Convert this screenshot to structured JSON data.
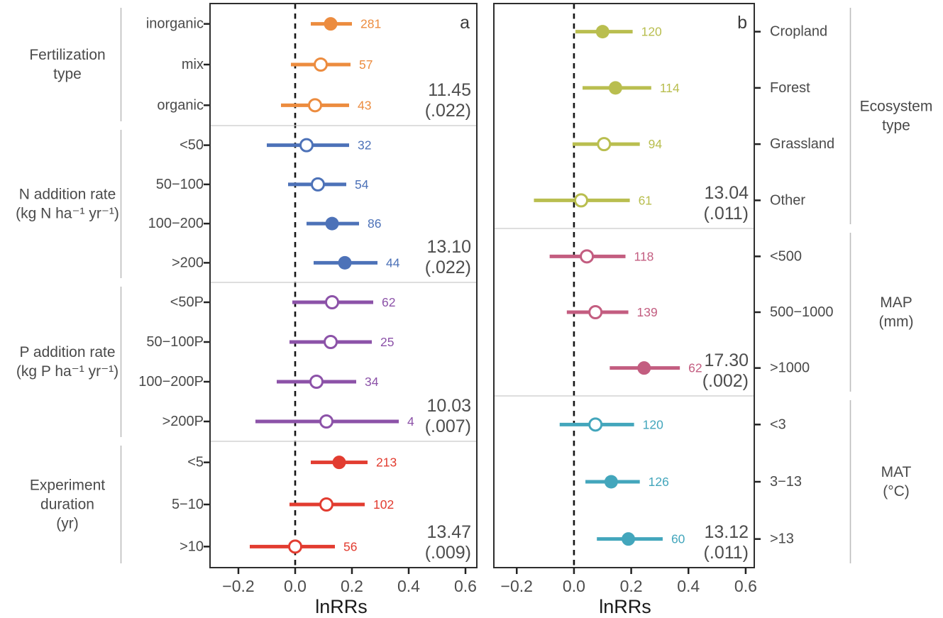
{
  "chart_data": {
    "type": "scatter",
    "subtype": "forest-plot-dot-and-ci",
    "xlabel": "lnRRs",
    "x_ticks": [
      -0.2,
      0.0,
      0.2,
      0.4,
      0.6
    ],
    "x_tick_labels": [
      "−0.2",
      "0.0",
      "0.2",
      "0.4",
      "0.6"
    ],
    "zero_reference_line": 0.0,
    "grid": "off",
    "marker_legend": {
      "filled": "significant effect",
      "open": "non-significant effect"
    },
    "panels": [
      {
        "letter": "a",
        "xlim": [
          -0.3,
          0.64
        ],
        "label_side": "left",
        "sections": [
          {
            "group_label": [
              "Fertilization",
              "type"
            ],
            "color": "#EC8C3F",
            "stat_value": "11.45",
            "stat_p": "(.022)",
            "rows": [
              {
                "label": "inorganic",
                "n": 281,
                "mean": 0.125,
                "ci_low": 0.055,
                "ci_high": 0.2,
                "significant": true
              },
              {
                "label": "mix",
                "n": 57,
                "mean": 0.09,
                "ci_low": -0.015,
                "ci_high": 0.195,
                "significant": false
              },
              {
                "label": "organic",
                "n": 43,
                "mean": 0.07,
                "ci_low": -0.05,
                "ci_high": 0.19,
                "significant": false
              }
            ]
          },
          {
            "group_label": [
              "N addition rate",
              "(kg N ha⁻¹ yr⁻¹)"
            ],
            "color": "#4D72B8",
            "stat_value": "13.10",
            "stat_p": "(.022)",
            "rows": [
              {
                "label": "<50",
                "n": 32,
                "mean": 0.04,
                "ci_low": -0.1,
                "ci_high": 0.19,
                "significant": false
              },
              {
                "label": "50−100",
                "n": 54,
                "mean": 0.08,
                "ci_low": -0.025,
                "ci_high": 0.18,
                "significant": false
              },
              {
                "label": "100−200",
                "n": 86,
                "mean": 0.13,
                "ci_low": 0.04,
                "ci_high": 0.225,
                "significant": true
              },
              {
                "label": ">200",
                "n": 44,
                "mean": 0.175,
                "ci_low": 0.065,
                "ci_high": 0.29,
                "significant": true
              }
            ]
          },
          {
            "group_label": [
              "P addition rate",
              "(kg P ha⁻¹ yr⁻¹)"
            ],
            "color": "#8C52A8",
            "stat_value": "10.03",
            "stat_p": "(.007)",
            "rows": [
              {
                "label": "<50P",
                "n": 62,
                "mean": 0.13,
                "ci_low": -0.01,
                "ci_high": 0.275,
                "significant": false
              },
              {
                "label": "50−100P",
                "n": 25,
                "mean": 0.125,
                "ci_low": -0.02,
                "ci_high": 0.27,
                "significant": false
              },
              {
                "label": "100−200P",
                "n": 34,
                "mean": 0.075,
                "ci_low": -0.065,
                "ci_high": 0.215,
                "significant": false
              },
              {
                "label": ">200P",
                "n": 4,
                "mean": 0.11,
                "ci_low": -0.14,
                "ci_high": 0.365,
                "significant": false
              }
            ]
          },
          {
            "group_label": [
              "Experiment",
              "duration",
              "(yr)"
            ],
            "color": "#E23C30",
            "stat_value": "13.47",
            "stat_p": "(.009)",
            "rows": [
              {
                "label": "<5",
                "n": 213,
                "mean": 0.155,
                "ci_low": 0.055,
                "ci_high": 0.255,
                "significant": true
              },
              {
                "label": "5−10",
                "n": 102,
                "mean": 0.11,
                "ci_low": -0.02,
                "ci_high": 0.245,
                "significant": false
              },
              {
                "label": ">10",
                "n": 56,
                "mean": 0.0,
                "ci_low": -0.16,
                "ci_high": 0.14,
                "significant": false
              }
            ]
          }
        ]
      },
      {
        "letter": "b",
        "xlim": [
          -0.28,
          0.63
        ],
        "label_side": "right",
        "sections": [
          {
            "group_label": [
              "Ecosystem",
              "type"
            ],
            "color": "#B9BE4F",
            "stat_value": "13.04",
            "stat_p": "(.011)",
            "rows": [
              {
                "label": "Cropland",
                "n": 120,
                "mean": 0.1,
                "ci_low": 0.005,
                "ci_high": 0.205,
                "significant": true
              },
              {
                "label": "Forest",
                "n": 114,
                "mean": 0.145,
                "ci_low": 0.03,
                "ci_high": 0.27,
                "significant": true
              },
              {
                "label": "Grassland",
                "n": 94,
                "mean": 0.105,
                "ci_low": -0.005,
                "ci_high": 0.23,
                "significant": false
              },
              {
                "label": "Other",
                "n": 61,
                "mean": 0.025,
                "ci_low": -0.14,
                "ci_high": 0.195,
                "significant": false
              }
            ]
          },
          {
            "group_label": [
              "MAP",
              "(mm)"
            ],
            "color": "#C35D80",
            "stat_value": "17.30",
            "stat_p": "(.002)",
            "rows": [
              {
                "label": "<500",
                "n": 118,
                "mean": 0.045,
                "ci_low": -0.085,
                "ci_high": 0.18,
                "significant": false
              },
              {
                "label": "500−1000",
                "n": 139,
                "mean": 0.075,
                "ci_low": -0.025,
                "ci_high": 0.19,
                "significant": false
              },
              {
                "label": ">1000",
                "n": 62,
                "mean": 0.245,
                "ci_low": 0.125,
                "ci_high": 0.37,
                "significant": true
              }
            ]
          },
          {
            "group_label": [
              "MAT",
              "(°C)"
            ],
            "color": "#43A6BC",
            "stat_value": "13.12",
            "stat_p": "(.011)",
            "rows": [
              {
                "label": "<3",
                "n": 120,
                "mean": 0.075,
                "ci_low": -0.05,
                "ci_high": 0.21,
                "significant": false
              },
              {
                "label": "3−13",
                "n": 126,
                "mean": 0.13,
                "ci_low": 0.04,
                "ci_high": 0.23,
                "significant": true
              },
              {
                "label": ">13",
                "n": 60,
                "mean": 0.19,
                "ci_low": 0.08,
                "ci_high": 0.31,
                "significant": true
              }
            ]
          }
        ]
      }
    ],
    "colors": {
      "fertilization_type": "#EC8C3F",
      "n_addition_rate": "#4D72B8",
      "p_addition_rate": "#8C52A8",
      "experiment_duration": "#E23C30",
      "ecosystem_type": "#B9BE4F",
      "map": "#C35D80",
      "mat": "#43A6BC",
      "text_gray": "#4a4a4a",
      "stat_gray": "#4d4d4d",
      "axis_black": "#1a1a1a"
    }
  }
}
